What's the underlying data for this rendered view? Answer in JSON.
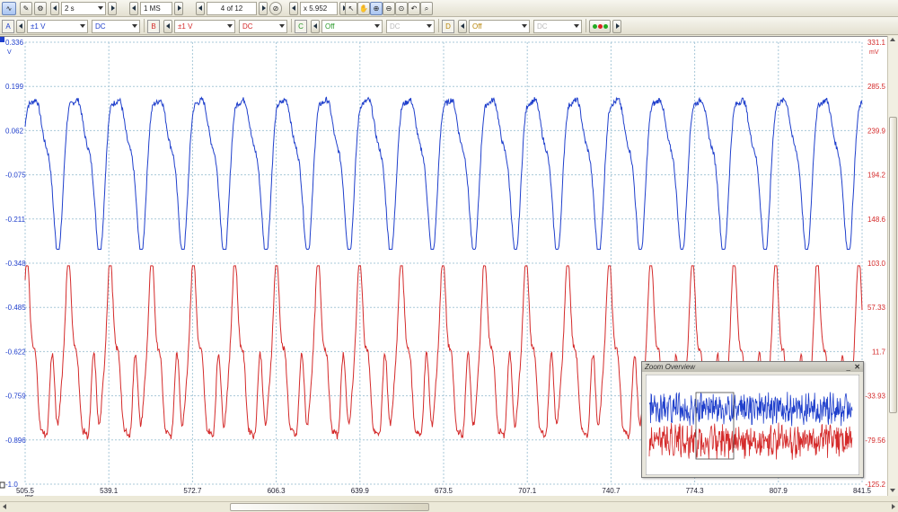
{
  "toolbar1": {
    "timebase": "2 s",
    "samples": "1 MS",
    "buffer": "4 of 12",
    "zoom_factor": "x 5.952"
  },
  "toolbar2": {
    "channel_a": {
      "tag": "A",
      "range": "±1 V",
      "coupling": "DC",
      "color": "#1f3fcc"
    },
    "channel_b": {
      "tag": "B",
      "range": "±1 V",
      "coupling": "DC",
      "color": "#d42a2a"
    },
    "channel_c": {
      "tag": "C",
      "range": "Off",
      "coupling": "DC"
    },
    "channel_d": {
      "tag": "D",
      "range": "Off",
      "coupling": "DC"
    }
  },
  "chart_data": {
    "type": "line",
    "xlabel": "ms",
    "x_ticks": [
      "505.5",
      "539.1",
      "572.7",
      "606.3",
      "639.9",
      "673.5",
      "707.1",
      "740.7",
      "774.3",
      "807.9",
      "841.5"
    ],
    "xlim": [
      505.5,
      841.5
    ],
    "left_axis": {
      "unit": "V",
      "ticks": [
        "0.336",
        "0.199",
        "0.062",
        "-0.075",
        "-0.211",
        "-0.348",
        "-0.485",
        "-0.622",
        "-0.759",
        "-0.896",
        "-1.0"
      ],
      "color": "#1f3fcc"
    },
    "right_axis": {
      "unit": "mV",
      "ticks": [
        "331.1",
        "285.5",
        "239.9",
        "194.2",
        "148.6",
        "103.0",
        "57.33",
        "11.7",
        "-33.93",
        "-79.56",
        "-125.2"
      ],
      "color": "#d42a2a"
    },
    "grid": true,
    "series": [
      {
        "name": "A",
        "color": "#1f3fcc",
        "period_ms": 16.7,
        "v_min": -0.29,
        "v_max": 0.28
      },
      {
        "name": "B",
        "color": "#d42a2a",
        "period_ms": 16.7,
        "v_min": -0.98,
        "v_max": -0.34
      }
    ]
  },
  "scale_boxes": {
    "left_bottom": "-100",
    "right_bottom": "100"
  },
  "zoom_overview": {
    "title": "Zoom Overview"
  }
}
